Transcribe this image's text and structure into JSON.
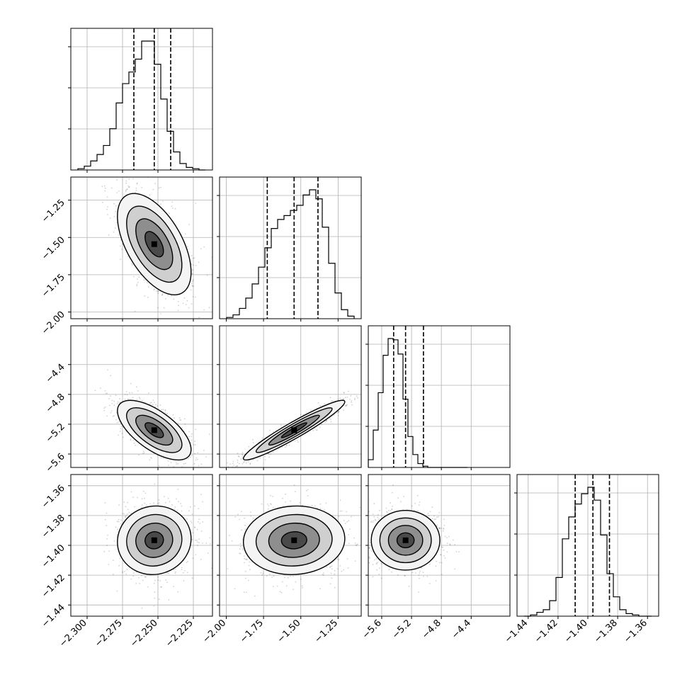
{
  "chart_data": {
    "type": "corner",
    "n_params": 4,
    "grid": true,
    "tick_labels": [
      [
        "-2.300",
        "-2.275",
        "-2.250",
        "-2.225"
      ],
      [
        "-2.00",
        "-1.75",
        "-1.50",
        "-1.25"
      ],
      [
        "-5.6",
        "-5.2",
        "-4.8",
        "-4.4"
      ],
      [
        "-1.44",
        "-1.42",
        "-1.40",
        "-1.38",
        "-1.36"
      ]
    ],
    "params": [
      {
        "range": [
          -2.3115,
          -2.2115
        ],
        "ticks": [
          -2.3,
          -2.275,
          -2.25,
          -2.225
        ],
        "quantiles": [
          -2.267,
          -2.2526,
          -2.241
        ],
        "hist_bins": [
          0.01,
          0.03,
          0.07,
          0.12,
          0.19,
          0.32,
          0.52,
          0.67,
          0.76,
          0.86,
          1.0,
          1.0,
          0.82,
          0.55,
          0.3,
          0.14,
          0.05,
          0.02,
          0.01,
          0.0
        ]
      },
      {
        "range": [
          -2.045,
          -1.095
        ],
        "ticks": [
          -2.0,
          -1.75,
          -1.5,
          -1.25
        ],
        "quantiles": [
          -1.725,
          -1.545,
          -1.385
        ],
        "hist_bins": [
          0.01,
          0.03,
          0.08,
          0.16,
          0.27,
          0.4,
          0.55,
          0.7,
          0.77,
          0.8,
          0.84,
          0.88,
          0.96,
          1.0,
          0.93,
          0.71,
          0.43,
          0.2,
          0.07,
          0.02
        ]
      },
      {
        "range": [
          -5.78,
          -3.88
        ],
        "ticks": [
          -5.6,
          -5.2,
          -4.8,
          -4.4
        ],
        "quantiles": [
          -5.44,
          -5.28,
          -5.04
        ],
        "hist_bins": [
          0.06,
          0.29,
          0.58,
          0.87,
          1.0,
          0.99,
          0.88,
          0.53,
          0.24,
          0.1,
          0.03,
          0.01,
          0.0,
          0.0,
          0.0,
          0.0,
          0.0,
          0.0,
          0.0,
          0.0
        ]
      },
      {
        "range": [
          -1.4475,
          -1.3525
        ],
        "ticks": [
          -1.44,
          -1.42,
          -1.4,
          -1.38,
          -1.36
        ],
        "quantiles": [
          -1.4085,
          -1.3966,
          -1.3855
        ],
        "hist_bins": [
          0.0,
          0.01,
          0.03,
          0.05,
          0.12,
          0.3,
          0.6,
          0.77,
          0.87,
          0.95,
          1.0,
          0.9,
          0.63,
          0.33,
          0.15,
          0.05,
          0.02,
          0.01,
          0.0,
          0.0
        ]
      }
    ],
    "correlations": [
      {
        "i": 1,
        "j": 0,
        "rho": -0.55
      },
      {
        "i": 2,
        "j": 0,
        "rho": -0.65
      },
      {
        "i": 2,
        "j": 1,
        "rho": 0.95
      },
      {
        "i": 3,
        "j": 0,
        "rho": 0.05
      },
      {
        "i": 3,
        "j": 1,
        "rho": 0.05
      },
      {
        "i": 3,
        "j": 2,
        "rho": 0.0
      }
    ],
    "contour_levels": [
      0.5,
      1.0,
      1.5,
      2.0
    ]
  }
}
